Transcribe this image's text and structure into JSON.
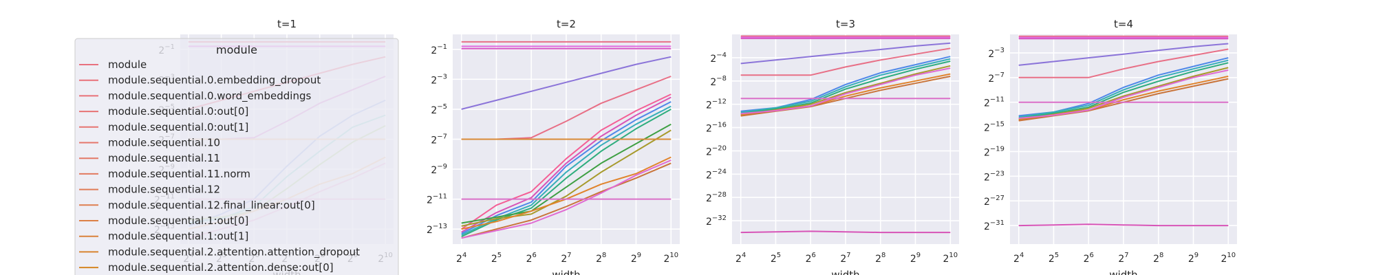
{
  "chart_data": [
    {
      "type": "line",
      "title": "t=1",
      "xlabel": "width",
      "ylabel": "",
      "x": [
        16,
        32,
        64,
        128,
        256,
        512,
        1024
      ],
      "x_ticklabels": [
        "2^4",
        "2^5",
        "2^6",
        "2^7",
        "2^8",
        "2^9",
        "2^10"
      ],
      "y_scale": "log2",
      "ylim_exp": [
        -14,
        0
      ],
      "y_tick_exps": [
        -13,
        -11,
        -9,
        -7,
        -5,
        -3,
        -1
      ],
      "grid": true,
      "series": [
        {
          "color": "#e86f86",
          "y_exp": [
            -0.5,
            -0.5,
            -0.5,
            -0.5,
            -0.5,
            -0.5,
            -0.5
          ]
        },
        {
          "color": "#e16ce0",
          "y_exp": [
            -0.8,
            -0.8,
            -0.8,
            -0.8,
            -0.8,
            -0.8,
            -0.8
          ]
        },
        {
          "color": "#e86f86",
          "y_exp": [
            -5.0,
            -4.4,
            -3.8,
            -3.2,
            -2.6,
            -2.0,
            -1.5
          ]
        },
        {
          "color": "#d98bd4",
          "y_exp": [
            -7.0,
            -7.0,
            -6.9,
            -5.8,
            -4.6,
            -3.7,
            -2.8
          ]
        },
        {
          "color": "#9fb5ea",
          "y_exp": [
            -12.8,
            -12.0,
            -11.0,
            -8.8,
            -6.8,
            -5.4,
            -4.4
          ]
        },
        {
          "color": "#96d4d0",
          "y_exp": [
            -12.6,
            -12.3,
            -11.5,
            -9.5,
            -7.8,
            -6.2,
            -5.4
          ]
        },
        {
          "color": "#b7d49a",
          "y_exp": [
            -12.4,
            -12.2,
            -11.8,
            -10.3,
            -8.7,
            -7.2,
            -6.1
          ]
        },
        {
          "color": "#f0c49b",
          "y_exp": [
            -7.0,
            -7.0,
            -7.0,
            -7.0,
            -7.0,
            -7.0,
            -7.0
          ]
        },
        {
          "color": "#f0c49b",
          "y_exp": [
            -13.0,
            -12.5,
            -11.8,
            -11.0,
            -10.0,
            -9.3,
            -8.2
          ]
        },
        {
          "color": "#e9b3d9",
          "y_exp": [
            -13.6,
            -13.0,
            -12.4,
            -11.5,
            -10.5,
            -9.6,
            -8.6
          ]
        },
        {
          "color": "#e9b3d9",
          "y_exp": [
            -11.0,
            -11.0,
            -11.0,
            -11.0,
            -11.0,
            -11.0,
            -11.0
          ]
        }
      ]
    },
    {
      "type": "line",
      "title": "t=2",
      "xlabel": "width",
      "ylabel": "",
      "x": [
        16,
        32,
        64,
        128,
        256,
        512,
        1024
      ],
      "x_ticklabels": [
        "2^4",
        "2^5",
        "2^6",
        "2^7",
        "2^8",
        "2^9",
        "2^10"
      ],
      "y_scale": "log2",
      "ylim_exp": [
        -14,
        0
      ],
      "y_tick_exps": [
        -13,
        -11,
        -9,
        -7,
        -5,
        -3,
        -1
      ],
      "grid": true,
      "series": [
        {
          "color": "#e86f86",
          "y_exp": [
            -0.5,
            -0.5,
            -0.5,
            -0.5,
            -0.5,
            -0.5,
            -0.5
          ]
        },
        {
          "color": "#e16ce0",
          "y_exp": [
            -0.8,
            -0.8,
            -0.8,
            -0.8,
            -0.8,
            -0.8,
            -0.8
          ]
        },
        {
          "color": "#d657c4",
          "y_exp": [
            -0.95,
            -0.95,
            -0.95,
            -0.95,
            -0.95,
            -0.95,
            -0.95
          ]
        },
        {
          "color": "#8b74d9",
          "y_exp": [
            -5.0,
            -4.4,
            -3.8,
            -3.2,
            -2.6,
            -2.0,
            -1.5
          ]
        },
        {
          "color": "#e86f86",
          "y_exp": [
            -7.0,
            -7.0,
            -6.9,
            -5.8,
            -4.6,
            -3.7,
            -2.8
          ]
        },
        {
          "color": "#f45e95",
          "y_exp": [
            -13.0,
            -11.4,
            -10.5,
            -8.3,
            -6.4,
            -5.1,
            -4.0
          ]
        },
        {
          "color": "#d754b7",
          "y_exp": [
            -13.2,
            -11.9,
            -10.9,
            -8.6,
            -6.8,
            -5.4,
            -4.2
          ]
        },
        {
          "color": "#4f88e8",
          "y_exp": [
            -13.3,
            -12.1,
            -11.2,
            -8.8,
            -7.1,
            -5.7,
            -4.5
          ]
        },
        {
          "color": "#36aeb9",
          "y_exp": [
            -13.4,
            -12.3,
            -11.4,
            -9.2,
            -7.4,
            -6.0,
            -4.8
          ]
        },
        {
          "color": "#2ead7d",
          "y_exp": [
            -13.5,
            -12.4,
            -11.6,
            -9.6,
            -7.8,
            -6.3,
            -5.0
          ]
        },
        {
          "color": "#3e9f43",
          "y_exp": [
            -12.6,
            -12.2,
            -11.8,
            -10.2,
            -8.6,
            -7.3,
            -6.0
          ]
        },
        {
          "color": "#a79a2c",
          "y_exp": [
            -12.8,
            -12.3,
            -12.0,
            -10.8,
            -9.2,
            -7.8,
            -6.4
          ]
        },
        {
          "color": "#d98a36",
          "y_exp": [
            -7.0,
            -7.0,
            -7.0,
            -7.0,
            -7.0,
            -7.0,
            -7.0
          ]
        },
        {
          "color": "#e0832b",
          "y_exp": [
            -13.0,
            -12.5,
            -11.8,
            -11.0,
            -10.0,
            -9.3,
            -8.2
          ]
        },
        {
          "color": "#c9743a",
          "y_exp": [
            -13.6,
            -13.0,
            -12.4,
            -11.5,
            -10.5,
            -9.6,
            -8.6
          ]
        },
        {
          "color": "#e06ad2",
          "y_exp": [
            -13.6,
            -13.1,
            -12.6,
            -11.7,
            -10.6,
            -9.4,
            -8.4
          ]
        },
        {
          "color": "#da6fc8",
          "y_exp": [
            -11.0,
            -11.0,
            -11.0,
            -11.0,
            -11.0,
            -11.0,
            -11.0
          ]
        }
      ]
    },
    {
      "type": "line",
      "title": "t=3",
      "xlabel": "width",
      "ylabel": "",
      "x": [
        16,
        32,
        64,
        128,
        256,
        512,
        1024
      ],
      "x_ticklabels": [
        "2^4",
        "2^5",
        "2^6",
        "2^7",
        "2^8",
        "2^9",
        "2^10"
      ],
      "y_scale": "log2",
      "ylim_exp": [
        -36,
        0
      ],
      "y_tick_exps": [
        -32,
        -28,
        -24,
        -20,
        -16,
        -12,
        -8,
        -4
      ],
      "grid": true,
      "series": [
        {
          "color": "#e86f86",
          "y_exp": [
            -0.3,
            -0.3,
            -0.3,
            -0.3,
            -0.3,
            -0.3,
            -0.3
          ]
        },
        {
          "color": "#e16ce0",
          "y_exp": [
            -0.5,
            -0.5,
            -0.5,
            -0.5,
            -0.5,
            -0.5,
            -0.5
          ]
        },
        {
          "color": "#d657c4",
          "y_exp": [
            -0.7,
            -0.7,
            -0.7,
            -0.7,
            -0.7,
            -0.7,
            -0.7
          ]
        },
        {
          "color": "#8b74d9",
          "y_exp": [
            -5.0,
            -4.4,
            -3.8,
            -3.2,
            -2.6,
            -2.0,
            -1.5
          ]
        },
        {
          "color": "#e86f86",
          "y_exp": [
            -7.0,
            -7.0,
            -7.0,
            -5.6,
            -4.4,
            -3.4,
            -2.4
          ]
        },
        {
          "color": "#4f88e8",
          "y_exp": [
            -13.2,
            -12.6,
            -11.2,
            -8.6,
            -6.6,
            -5.2,
            -3.8
          ]
        },
        {
          "color": "#36aeb9",
          "y_exp": [
            -13.4,
            -12.6,
            -11.5,
            -9.0,
            -7.0,
            -5.6,
            -4.2
          ]
        },
        {
          "color": "#2ead7d",
          "y_exp": [
            -13.6,
            -12.8,
            -11.8,
            -9.4,
            -7.6,
            -6.0,
            -4.6
          ]
        },
        {
          "color": "#a79a2c",
          "y_exp": [
            -13.8,
            -13.0,
            -12.0,
            -10.0,
            -8.4,
            -6.8,
            -5.4
          ]
        },
        {
          "color": "#e0832b",
          "y_exp": [
            -13.9,
            -13.0,
            -12.3,
            -10.6,
            -9.2,
            -8.0,
            -6.8
          ]
        },
        {
          "color": "#c9743a",
          "y_exp": [
            -14.0,
            -13.2,
            -12.4,
            -11.0,
            -9.6,
            -8.4,
            -7.2
          ]
        },
        {
          "color": "#e06ad2",
          "y_exp": [
            -13.6,
            -13.1,
            -12.3,
            -10.2,
            -8.6,
            -7.0,
            -5.8
          ]
        },
        {
          "color": "#da6fc8",
          "y_exp": [
            -11.0,
            -11.0,
            -11.0,
            -11.0,
            -11.0,
            -11.0,
            -11.0
          ]
        },
        {
          "color": "#d754b7",
          "y_exp": [
            -34.0,
            -33.9,
            -33.8,
            -33.9,
            -34.0,
            -34.0,
            -34.0
          ]
        }
      ]
    },
    {
      "type": "line",
      "title": "t=4",
      "xlabel": "width",
      "ylabel": "",
      "x": [
        16,
        32,
        64,
        128,
        256,
        512,
        1024
      ],
      "x_ticklabels": [
        "2^4",
        "2^5",
        "2^6",
        "2^7",
        "2^8",
        "2^9",
        "2^10"
      ],
      "y_scale": "log2",
      "ylim_exp": [
        -34,
        0
      ],
      "y_tick_exps": [
        -31,
        -27,
        -23,
        -19,
        -15,
        -11,
        -7,
        -3
      ],
      "grid": true,
      "series": [
        {
          "color": "#e86f86",
          "y_exp": [
            -0.3,
            -0.3,
            -0.3,
            -0.3,
            -0.3,
            -0.3,
            -0.3
          ]
        },
        {
          "color": "#e16ce0",
          "y_exp": [
            -0.5,
            -0.5,
            -0.5,
            -0.5,
            -0.5,
            -0.5,
            -0.5
          ]
        },
        {
          "color": "#d657c4",
          "y_exp": [
            -0.7,
            -0.7,
            -0.7,
            -0.7,
            -0.7,
            -0.7,
            -0.7
          ]
        },
        {
          "color": "#8b74d9",
          "y_exp": [
            -5.0,
            -4.4,
            -3.8,
            -3.2,
            -2.6,
            -2.0,
            -1.5
          ]
        },
        {
          "color": "#e86f86",
          "y_exp": [
            -7.0,
            -7.0,
            -7.0,
            -5.6,
            -4.4,
            -3.4,
            -2.4
          ]
        },
        {
          "color": "#4f88e8",
          "y_exp": [
            -13.2,
            -12.6,
            -11.2,
            -8.6,
            -6.6,
            -5.2,
            -3.8
          ]
        },
        {
          "color": "#36aeb9",
          "y_exp": [
            -13.4,
            -12.6,
            -11.5,
            -9.0,
            -7.0,
            -5.6,
            -4.2
          ]
        },
        {
          "color": "#2ead7d",
          "y_exp": [
            -13.6,
            -12.8,
            -11.8,
            -9.4,
            -7.6,
            -6.0,
            -4.6
          ]
        },
        {
          "color": "#a79a2c",
          "y_exp": [
            -13.8,
            -13.0,
            -12.0,
            -10.0,
            -8.4,
            -6.8,
            -5.4
          ]
        },
        {
          "color": "#e0832b",
          "y_exp": [
            -13.9,
            -13.0,
            -12.3,
            -10.6,
            -9.2,
            -8.0,
            -6.8
          ]
        },
        {
          "color": "#c9743a",
          "y_exp": [
            -14.0,
            -13.2,
            -12.4,
            -11.0,
            -9.6,
            -8.4,
            -7.2
          ]
        },
        {
          "color": "#e06ad2",
          "y_exp": [
            -13.6,
            -13.1,
            -12.3,
            -10.2,
            -8.6,
            -7.0,
            -5.8
          ]
        },
        {
          "color": "#da6fc8",
          "y_exp": [
            -11.0,
            -11.0,
            -11.0,
            -11.0,
            -11.0,
            -11.0,
            -11.0
          ]
        },
        {
          "color": "#d754b7",
          "y_exp": [
            -31.0,
            -30.9,
            -30.8,
            -30.9,
            -31.0,
            -31.0,
            -31.0
          ]
        }
      ]
    }
  ],
  "legend": {
    "title": "module",
    "placement": "left, overlapping the first panel",
    "entries": [
      {
        "label": "module",
        "color": "#e8707e"
      },
      {
        "label": "module.sequential.0.embedding_dropout",
        "color": "#e8707a"
      },
      {
        "label": "module.sequential.0.word_embeddings",
        "color": "#e87077"
      },
      {
        "label": "module.sequential.0:out[0]",
        "color": "#e77274"
      },
      {
        "label": "module.sequential.0:out[1]",
        "color": "#e67470"
      },
      {
        "label": "module.sequential.10",
        "color": "#e5766b"
      },
      {
        "label": "module.sequential.11",
        "color": "#e47866"
      },
      {
        "label": "module.sequential.11.norm",
        "color": "#e27a5f"
      },
      {
        "label": "module.sequential.12",
        "color": "#e07c57"
      },
      {
        "label": "module.sequential.12.final_linear:out[0]",
        "color": "#de7e4f"
      },
      {
        "label": "module.sequential.1:out[0]",
        "color": "#dc8045"
      },
      {
        "label": "module.sequential.1:out[1]",
        "color": "#da823b"
      },
      {
        "label": "module.sequential.2.attention.attention_dropout",
        "color": "#d8842f"
      },
      {
        "label": "module.sequential.2.attention.dense:out[0]",
        "color": "#d58622"
      }
    ]
  }
}
